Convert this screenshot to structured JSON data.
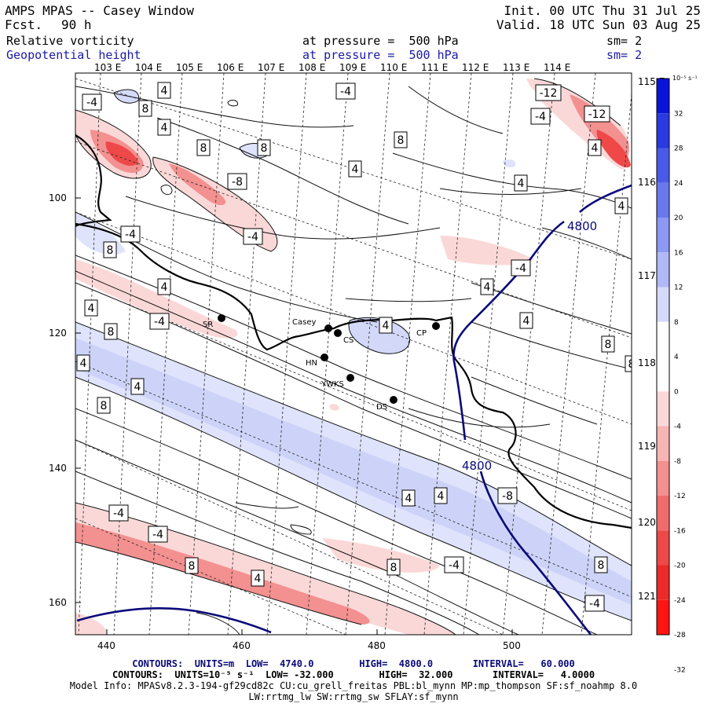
{
  "header": {
    "title": "AMPS MPAS -- Casey Window",
    "forecast_label": "Fcst.",
    "forecast_value": "90 h",
    "init": "Init. 00 UTC Thu 31 Jul 25",
    "valid": "Valid. 18 UTC Sun 03 Aug 25",
    "field1": {
      "name": "Relative vorticity",
      "level": "at pressure =  500 hPa",
      "smooth": "sm= 2"
    },
    "field2": {
      "name": "Geopotential height",
      "level": "at pressure =  500 hPa",
      "smooth": "sm= 2"
    }
  },
  "map": {
    "top_lon_labels": [
      "103 E",
      "104 E",
      "105 E",
      "106 E",
      "107 E",
      "108 E",
      "109 E",
      "110 E",
      "111 E",
      "112 E",
      "113 E",
      "114 E"
    ],
    "right_lon_labels": [
      "115 E",
      "116 E",
      "117 E",
      "118 E",
      "119 E",
      "120 E",
      "121 E"
    ],
    "left_y_labels": [
      "100",
      "120",
      "140",
      "160"
    ],
    "bottom_x_labels": [
      "440",
      "460",
      "480",
      "500"
    ],
    "stations": [
      {
        "label": "SR"
      },
      {
        "label": "Casey"
      },
      {
        "label": "CS"
      },
      {
        "label": "CP"
      },
      {
        "label": "HN"
      },
      {
        "label": "YWKS"
      },
      {
        "label": "DS"
      }
    ],
    "height_contour_labels": [
      "4800",
      "4800"
    ],
    "vorticity_labels": [
      "-4",
      "8",
      "4",
      "-4",
      "-12",
      "-4",
      "-12",
      "4",
      "8",
      "8",
      "8",
      "4",
      "4",
      "-8",
      "4",
      "4",
      "-4",
      "8",
      "-4",
      "-4",
      "4",
      "4",
      "4",
      "8",
      "-4",
      "4",
      "4",
      "8",
      "4",
      "8",
      "4",
      "8",
      "4",
      "4",
      "-4",
      "-8",
      "-4",
      "8",
      "-4",
      "8",
      "4",
      "8",
      "-4"
    ],
    "colors": {
      "positive": "#0a14c8",
      "negative": "#ff1a1a",
      "height_contour": "#0a0a7a"
    }
  },
  "colorbar": {
    "unit": "10⁻⁵ s⁻¹",
    "ticks": [
      "32",
      "28",
      "24",
      "20",
      "16",
      "12",
      "8",
      "4",
      "0",
      "-4",
      "-8",
      "-12",
      "-16",
      "-20",
      "-24",
      "-28",
      "-32"
    ],
    "colors": [
      "#0a14d8",
      "#2a3ae0",
      "#4a5ae8",
      "#6a78ee",
      "#8c98f2",
      "#b0b8f6",
      "#d6dafa",
      "#ffffff",
      "#ffffff",
      "#fbd8d8",
      "#f7b4b4",
      "#f39090",
      "#f06c6c",
      "#ee4848",
      "#ec2a2a",
      "#ff1414"
    ]
  },
  "footer": {
    "line1": "CONTOURS:  UNITS=m  LOW=  4740.0        HIGH=  4800.0       INTERVAL=   60.000",
    "line2": "CONTOURS:  UNITS=10⁻⁵ s⁻¹  LOW= -32.000        HIGH=  32.000       INTERVAL=   4.0000",
    "line3": "Model Info: MPASv8.2.3-194-gf29cd82c CU:cu_grell_freitas PBL:bl_mynn MP:mp_thompson SF:sf_noahmp 8.0",
    "line4": "LW:rrtmg_lw SW:rrtmg_sw SFLAY:sf_mynn"
  }
}
